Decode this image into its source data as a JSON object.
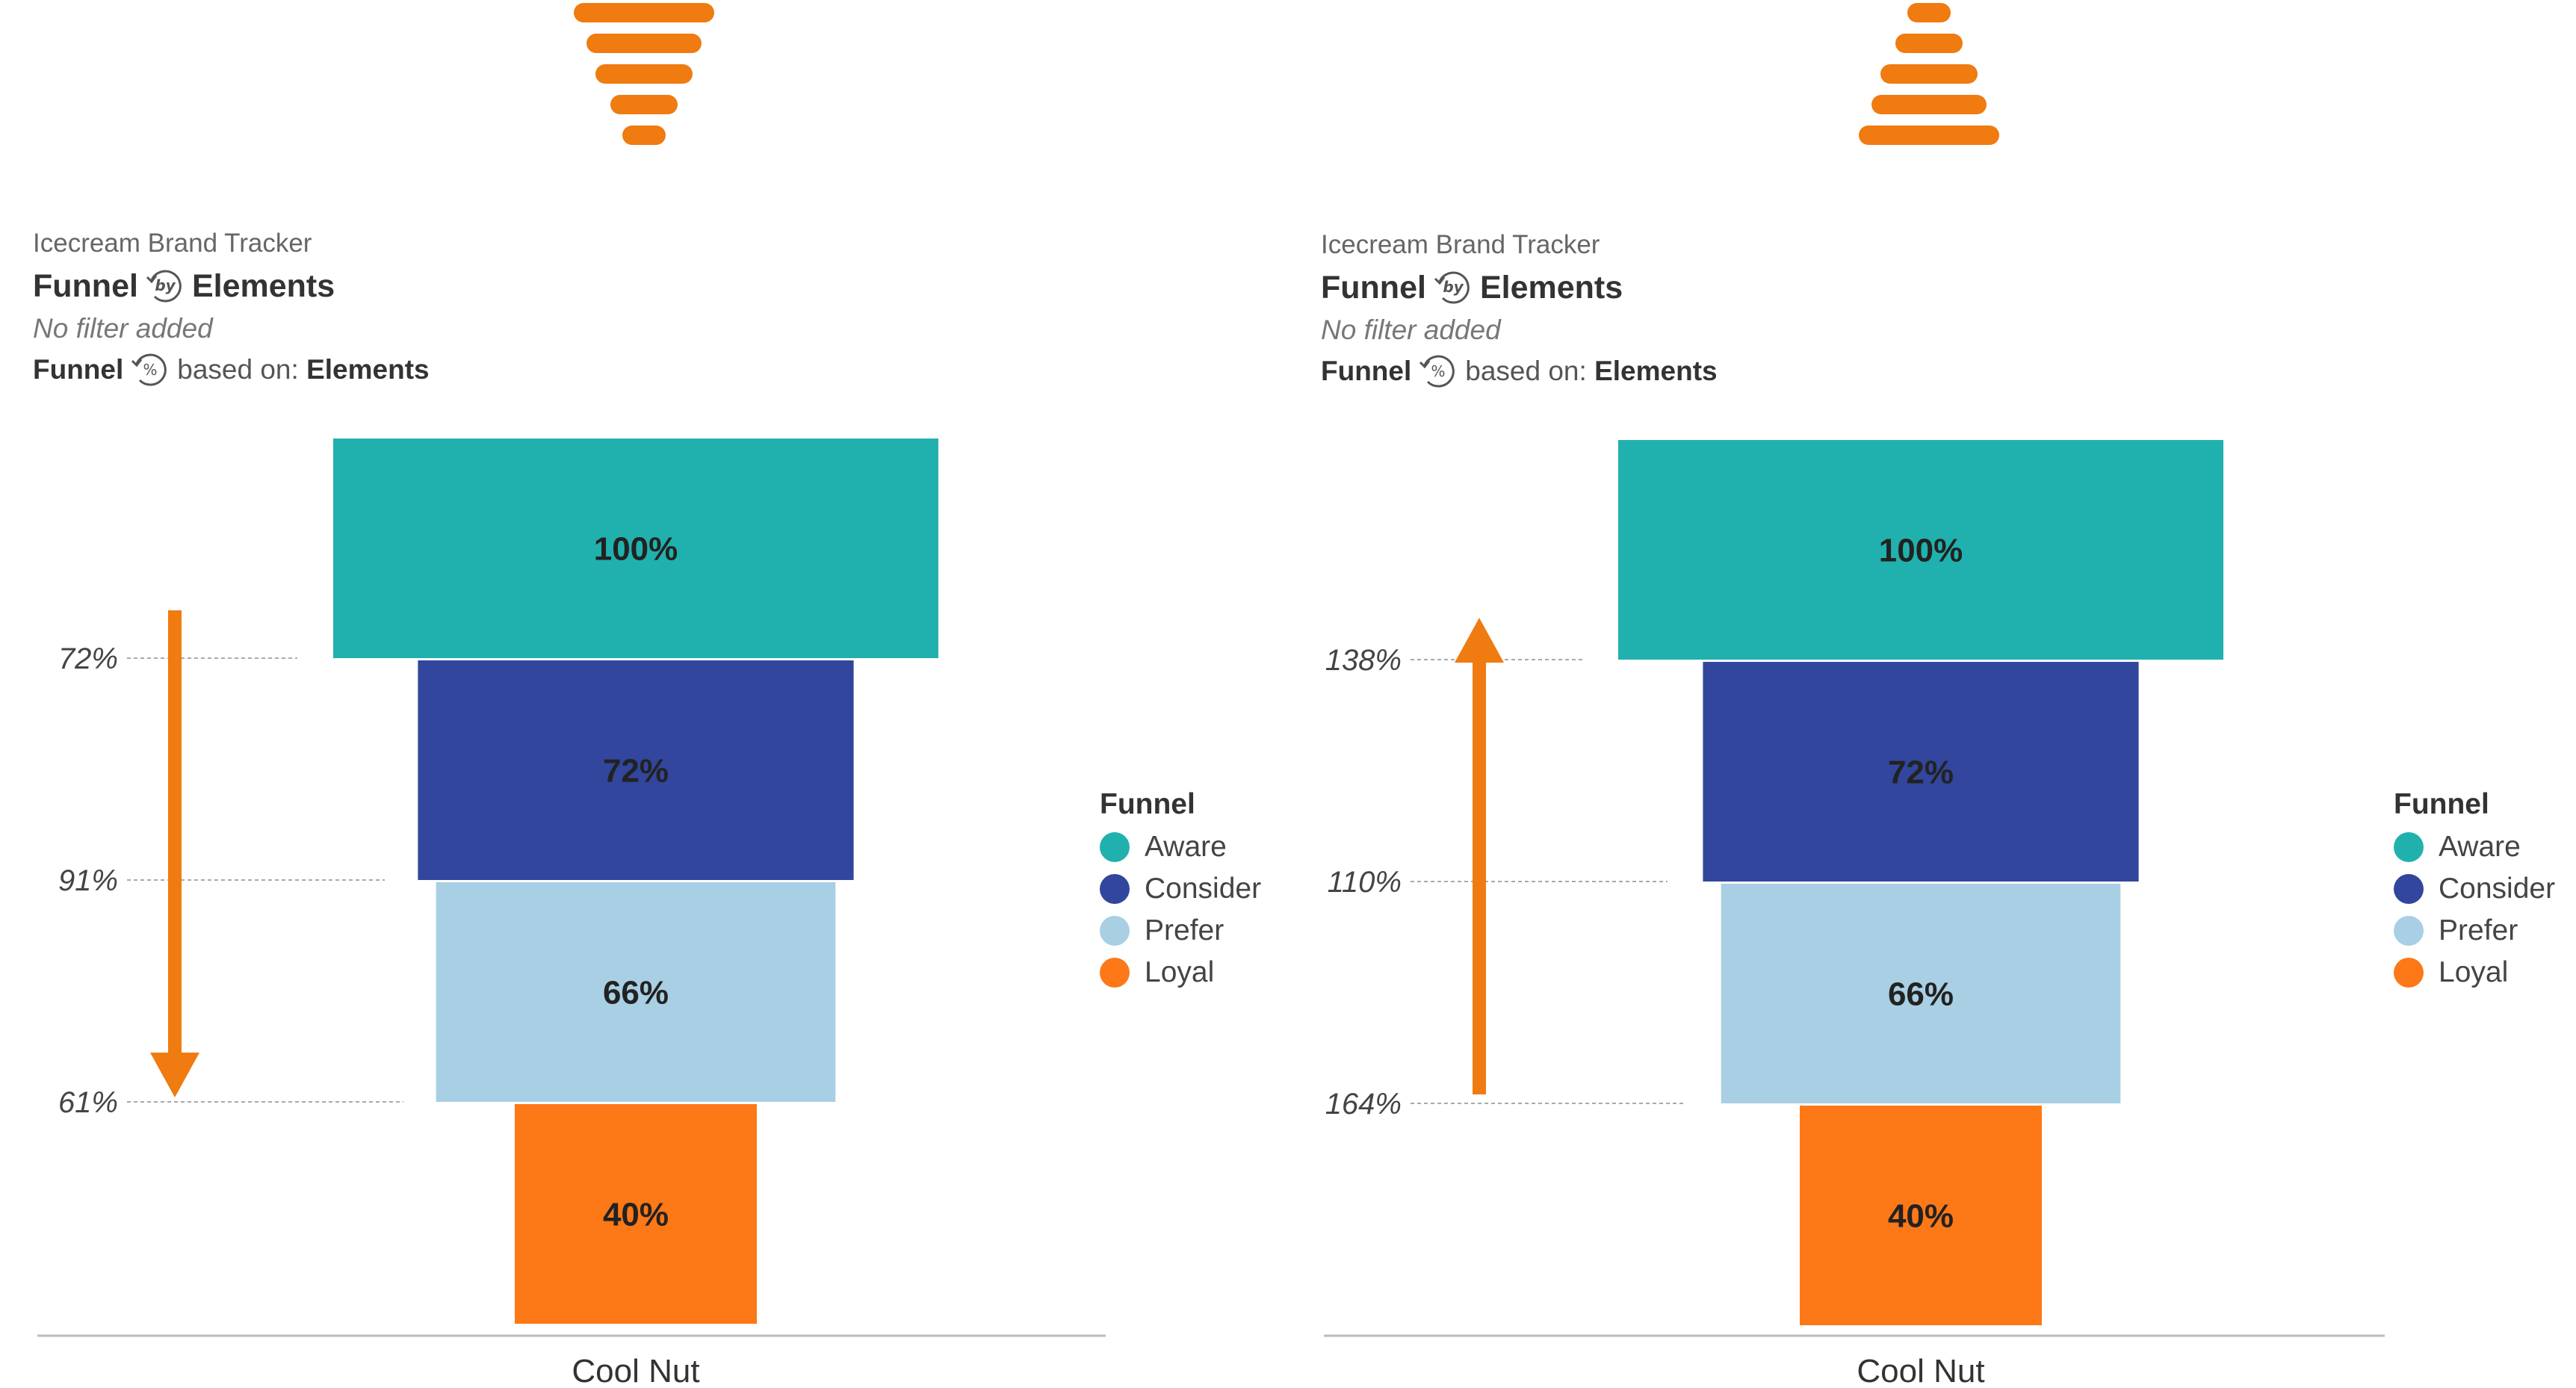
{
  "colors": {
    "aware": "#20b1ae",
    "consider": "#31469c",
    "prefer": "#a8cfe3",
    "loyal": "#fd7817",
    "arrow": "#ef7b11",
    "icon": "#ef7b11"
  },
  "panels": [
    {
      "icon": "funnel-descending-icon",
      "arrow_direction": "down",
      "subtitle": "Icecream Brand Tracker",
      "title_left": "Funnel",
      "title_by": "by",
      "title_right": "Elements",
      "filter_text": "No filter added",
      "based_left": "Funnel",
      "based_pct": "%",
      "based_mid": "based on:",
      "based_right": "Elements",
      "legend_title": "Funnel",
      "chart_data": {
        "type": "bar",
        "categories": [
          "Cool Nut"
        ],
        "series": [
          {
            "name": "Aware",
            "values": [
              100
            ],
            "label": "100%"
          },
          {
            "name": "Consider",
            "values": [
              72
            ],
            "label": "72%"
          },
          {
            "name": "Prefer",
            "values": [
              66
            ],
            "label": "66%"
          },
          {
            "name": "Loyal",
            "values": [
              40
            ],
            "label": "40%"
          }
        ],
        "conversions": [
          {
            "label": "72%",
            "value": 72
          },
          {
            "label": "91%",
            "value": 91
          },
          {
            "label": "61%",
            "value": 61
          }
        ],
        "legend_placement": "right",
        "grid": false
      }
    },
    {
      "icon": "funnel-ascending-icon",
      "arrow_direction": "up",
      "subtitle": "Icecream Brand Tracker",
      "title_left": "Funnel",
      "title_by": "by",
      "title_right": "Elements",
      "filter_text": "No filter added",
      "based_left": "Funnel",
      "based_pct": "%",
      "based_mid": "based on:",
      "based_right": "Elements",
      "legend_title": "Funnel",
      "chart_data": {
        "type": "bar",
        "categories": [
          "Cool Nut"
        ],
        "series": [
          {
            "name": "Aware",
            "values": [
              100
            ],
            "label": "100%"
          },
          {
            "name": "Consider",
            "values": [
              72
            ],
            "label": "72%"
          },
          {
            "name": "Prefer",
            "values": [
              66
            ],
            "label": "66%"
          },
          {
            "name": "Loyal",
            "values": [
              40
            ],
            "label": "40%"
          }
        ],
        "conversions": [
          {
            "label": "138%",
            "value": 138
          },
          {
            "label": "110%",
            "value": 110
          },
          {
            "label": "164%",
            "value": 164
          }
        ],
        "legend_placement": "right",
        "grid": false
      }
    }
  ]
}
